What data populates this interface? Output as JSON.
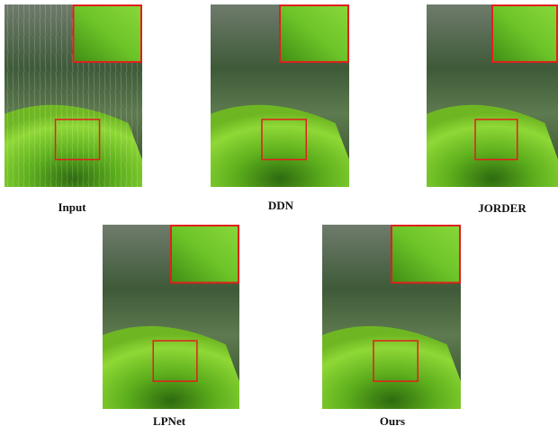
{
  "panels": [
    {
      "label": "Input"
    },
    {
      "label": "DDN"
    },
    {
      "label": "JORDER"
    },
    {
      "label": "LPNet"
    },
    {
      "label": "Ours"
    }
  ]
}
